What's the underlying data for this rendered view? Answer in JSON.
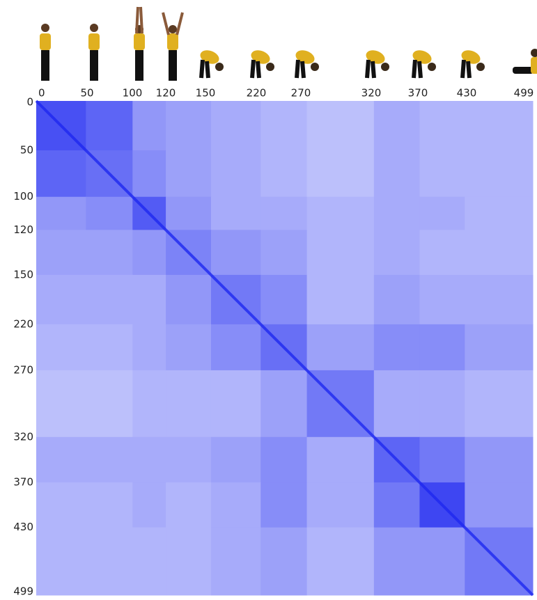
{
  "chart_data": {
    "type": "heatmap",
    "categories": [
      "0",
      "50",
      "100",
      "120",
      "150",
      "220",
      "270",
      "320",
      "370",
      "430",
      "499"
    ],
    "color": "#1e28f0",
    "values": [
      [
        0.8,
        0.7,
        0.45,
        0.4,
        0.35,
        0.3,
        0.25,
        0.35,
        0.3,
        0.3
      ],
      [
        0.7,
        0.65,
        0.5,
        0.4,
        0.35,
        0.3,
        0.25,
        0.35,
        0.3,
        0.3
      ],
      [
        0.45,
        0.5,
        0.75,
        0.45,
        0.35,
        0.35,
        0.3,
        0.35,
        0.35,
        0.3
      ],
      [
        0.4,
        0.4,
        0.45,
        0.55,
        0.45,
        0.4,
        0.3,
        0.35,
        0.3,
        0.3
      ],
      [
        0.35,
        0.35,
        0.35,
        0.45,
        0.6,
        0.5,
        0.3,
        0.4,
        0.35,
        0.35
      ],
      [
        0.3,
        0.3,
        0.35,
        0.4,
        0.5,
        0.65,
        0.4,
        0.5,
        0.5,
        0.4
      ],
      [
        0.25,
        0.25,
        0.3,
        0.3,
        0.3,
        0.4,
        0.6,
        0.35,
        0.35,
        0.3
      ],
      [
        0.35,
        0.35,
        0.35,
        0.35,
        0.4,
        0.5,
        0.35,
        0.7,
        0.6,
        0.45
      ],
      [
        0.3,
        0.3,
        0.35,
        0.3,
        0.35,
        0.5,
        0.35,
        0.6,
        0.85,
        0.45
      ],
      [
        0.3,
        0.3,
        0.3,
        0.3,
        0.35,
        0.4,
        0.3,
        0.45,
        0.45,
        0.6
      ]
    ],
    "zlim": [
      0,
      1
    ]
  }
}
